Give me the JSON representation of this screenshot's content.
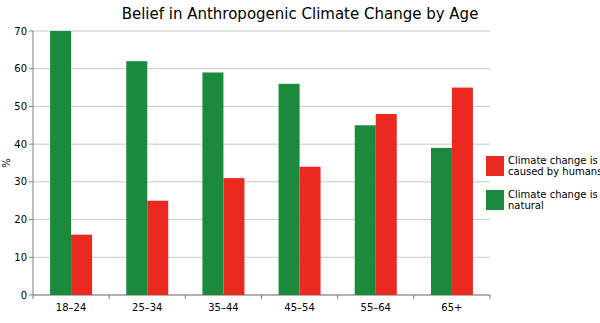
{
  "chart_data": {
    "type": "bar",
    "title": "Belief in Anthropogenic Climate Change by Age",
    "y_label": "%",
    "categories": [
      "18–24",
      "25–34",
      "35–44",
      "45–54",
      "55–64",
      "65+"
    ],
    "series": [
      {
        "name": "Climate change is natural",
        "color": "#1b8a3d",
        "values": [
          70,
          62,
          59,
          56,
          45,
          39
        ]
      },
      {
        "name": "Climate change is caused by humans",
        "color": "#ea2a20",
        "values": [
          16,
          25,
          31,
          34,
          48,
          55
        ]
      }
    ],
    "ylim": [
      0,
      70
    ],
    "yticks": [
      0,
      10,
      20,
      30,
      40,
      50,
      60,
      70
    ],
    "grid": true,
    "legend": "right"
  }
}
